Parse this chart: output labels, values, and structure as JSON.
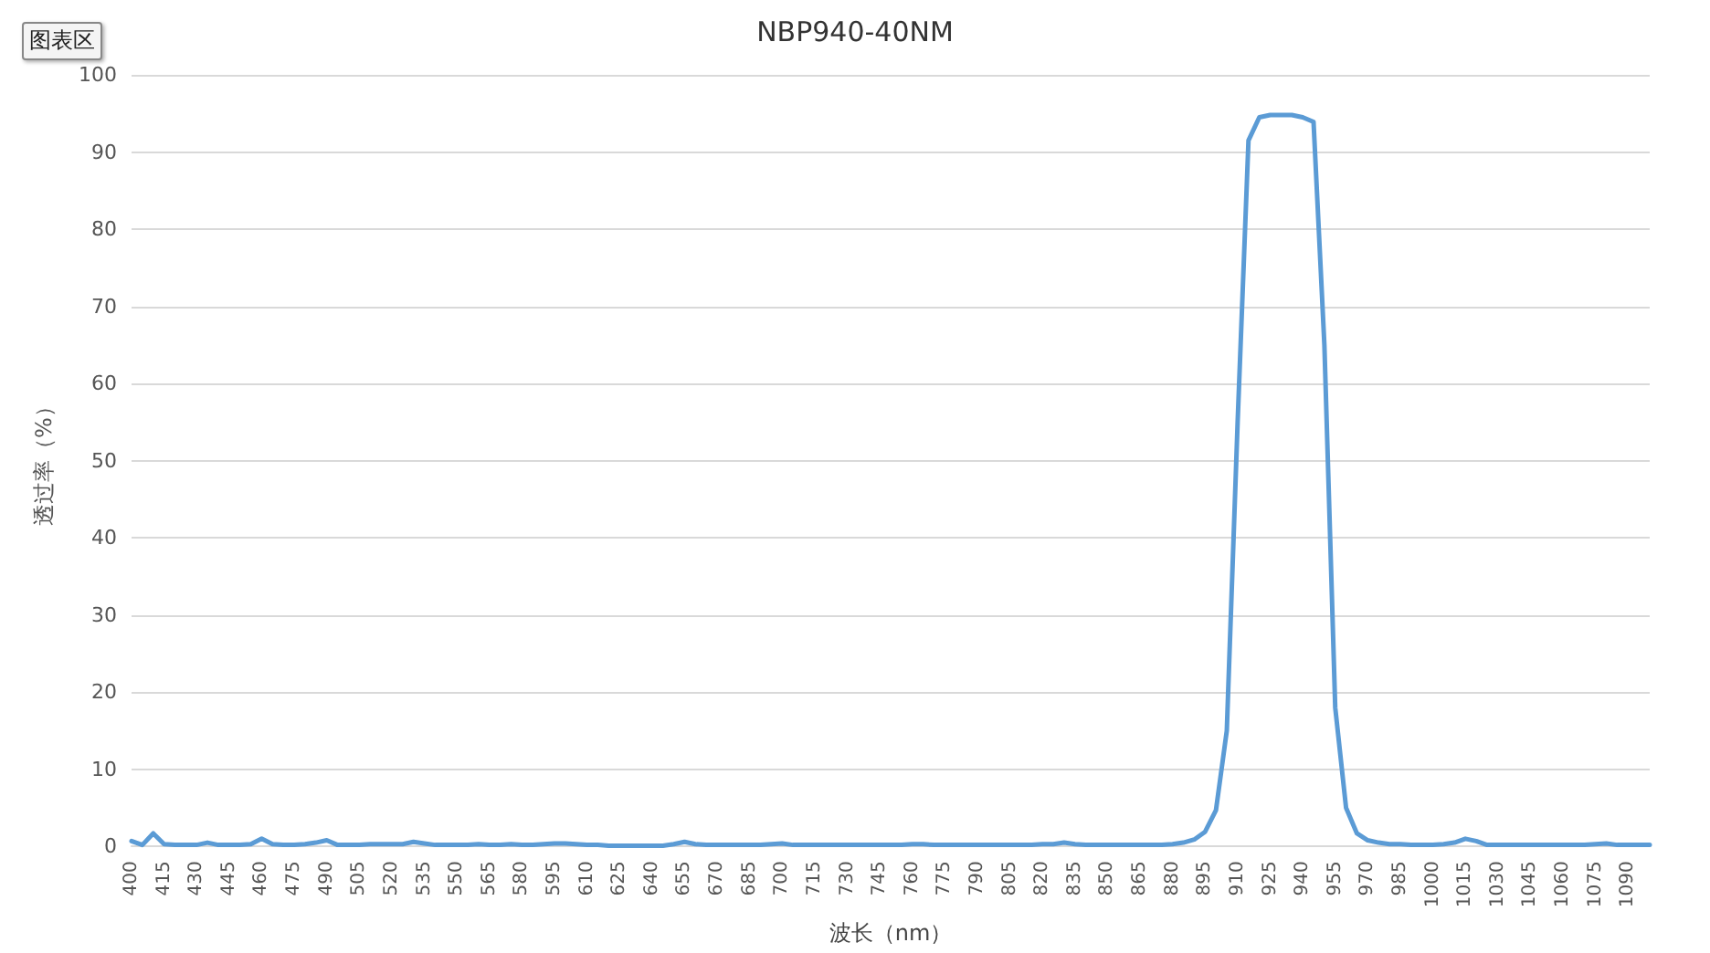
{
  "chart_data": {
    "type": "line",
    "title": "NBP940-40NM",
    "xlabel": "波长（nm）",
    "ylabel": "透过率（%）",
    "annotations": [
      "图表区"
    ],
    "categories": [
      "400",
      null,
      null,
      "415",
      null,
      null,
      "430",
      null,
      null,
      "445",
      null,
      null,
      "460",
      null,
      null,
      "475",
      null,
      null,
      "490",
      null,
      null,
      "505",
      null,
      null,
      "520",
      null,
      null,
      "535",
      null,
      null,
      "550",
      null,
      null,
      "565",
      null,
      null,
      "580",
      null,
      null,
      "595",
      null,
      null,
      "610",
      null,
      null,
      "625",
      null,
      null,
      "640",
      null,
      null,
      "655",
      null,
      null,
      "670",
      null,
      null,
      "685",
      null,
      null,
      "700",
      null,
      null,
      "715",
      null,
      null,
      "730",
      null,
      null,
      "745",
      null,
      null,
      "760",
      null,
      null,
      "775",
      null,
      null,
      "790",
      null,
      null,
      "805",
      null,
      null,
      "820",
      null,
      null,
      "835",
      null,
      null,
      "850",
      null,
      null,
      "865",
      null,
      null,
      "880",
      null,
      null,
      "895",
      null,
      null,
      "910",
      null,
      null,
      "925",
      null,
      null,
      "940",
      null,
      null,
      "955",
      null,
      null,
      "970",
      null,
      null,
      "985",
      null,
      null,
      "1000",
      null,
      null,
      "1015",
      null,
      null,
      "1030",
      null,
      null,
      "1045",
      null,
      null,
      "1060",
      null,
      null,
      "1075",
      null,
      null,
      "1090",
      null,
      null
    ],
    "series": [
      {
        "color": "#5b9bd5",
        "values": [
          0.7,
          0.2,
          1.7,
          0.3,
          0.2,
          0.2,
          0.2,
          0.5,
          0.2,
          0.2,
          0.2,
          0.3,
          1.0,
          0.3,
          0.2,
          0.2,
          0.3,
          0.5,
          0.8,
          0.2,
          0.2,
          0.2,
          0.3,
          0.3,
          0.3,
          0.3,
          0.6,
          0.4,
          0.2,
          0.2,
          0.2,
          0.2,
          0.3,
          0.2,
          0.2,
          0.3,
          0.2,
          0.2,
          0.3,
          0.4,
          0.4,
          0.3,
          0.2,
          0.2,
          0.1,
          0.1,
          0.1,
          0.1,
          0.1,
          0.1,
          0.3,
          0.6,
          0.3,
          0.2,
          0.2,
          0.2,
          0.2,
          0.2,
          0.2,
          0.3,
          0.4,
          0.2,
          0.2,
          0.2,
          0.2,
          0.2,
          0.2,
          0.2,
          0.2,
          0.2,
          0.2,
          0.2,
          0.3,
          0.3,
          0.2,
          0.2,
          0.2,
          0.2,
          0.2,
          0.2,
          0.2,
          0.2,
          0.2,
          0.2,
          0.3,
          0.3,
          0.5,
          0.3,
          0.2,
          0.2,
          0.2,
          0.2,
          0.2,
          0.2,
          0.2,
          0.2,
          0.3,
          0.5,
          0.9,
          1.9,
          4.7,
          15,
          55,
          91.5,
          94.5,
          94.8,
          94.8,
          94.8,
          94.5,
          93.9,
          65,
          18,
          5,
          1.7,
          0.8,
          0.5,
          0.3,
          0.3,
          0.2,
          0.2,
          0.2,
          0.3,
          0.5,
          1.0,
          0.7,
          0.2,
          0.2,
          0.2,
          0.2,
          0.2,
          0.2,
          0.2,
          0.2,
          0.2,
          0.2,
          0.3,
          0.4,
          0.2,
          0.2,
          0.2,
          0.2
        ]
      }
    ],
    "ylim": [
      0,
      100
    ],
    "yticks": [
      0,
      10,
      20,
      30,
      40,
      50,
      60,
      70,
      80,
      90,
      100
    ],
    "grid": "y",
    "marker": "none",
    "line_style": "solid"
  }
}
